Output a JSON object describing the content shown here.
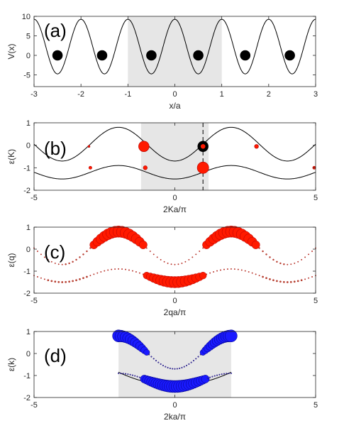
{
  "colors": {
    "shade": "#e6e6e6",
    "curve": "#000000",
    "atom": "#000000",
    "red": "#ff1a00",
    "red_edge": "#b30000",
    "blue": "#1a1aff",
    "blue_edge": "#000080"
  },
  "chart_data": [
    {
      "panel": "(a)",
      "type": "line",
      "xlabel": "x/a",
      "ylabel": "V(x)",
      "xlim": [
        -3,
        3
      ],
      "ylim": [
        -8,
        10
      ],
      "xticks": [
        -3,
        -2,
        -1,
        0,
        1,
        2,
        3
      ],
      "yticks": [
        -5,
        0,
        5,
        10
      ],
      "shaded_x": [
        -1,
        1
      ],
      "curve": {
        "formula": "V(x) = 2.25 + 7*cos(2*pi*x)",
        "x_range": [
          -3,
          3
        ]
      },
      "atoms": {
        "x": [
          -2.5,
          -1.55,
          -0.5,
          0.5,
          1.5,
          2.45
        ],
        "y": [
          0,
          0,
          0,
          0,
          0,
          0
        ]
      }
    },
    {
      "panel": "(b)",
      "type": "scatter",
      "xlabel": "2Ka/π",
      "ylabel": "ε(K)",
      "xlim": [
        -5,
        5
      ],
      "ylim": [
        -2,
        1
      ],
      "xticks": [
        -5,
        0,
        5
      ],
      "yticks": [
        -2,
        -1,
        0,
        1
      ],
      "shaded_x": [
        -1.2,
        1.2
      ],
      "dashed_x": 1,
      "bands": [
        {
          "formula": "0.05 - 0.75*cos(pi*x/2)"
        },
        {
          "formula": "-1.2 - 0.3*cos(pi*x/2)"
        }
      ],
      "points": [
        {
          "x": -1.1,
          "y": -0.05,
          "size": 1.0,
          "color": "red"
        },
        {
          "x": 1.0,
          "y": -0.05,
          "size": 1.0,
          "color": "black-ring"
        },
        {
          "x": 1.0,
          "y": -1.0,
          "size": 1.1,
          "color": "red"
        },
        {
          "x": -1.05,
          "y": -1.0,
          "size": 0.35,
          "color": "red"
        },
        {
          "x": 2.9,
          "y": -0.05,
          "size": 0.35,
          "color": "red"
        },
        {
          "x": -3.0,
          "y": -1.0,
          "size": 0.25,
          "color": "red"
        },
        {
          "x": 4.95,
          "y": -1.0,
          "size": 0.25,
          "color": "red"
        },
        {
          "x": -3.05,
          "y": -0.05,
          "size": 0.15,
          "color": "red"
        }
      ]
    },
    {
      "panel": "(c)",
      "type": "scatter",
      "xlabel": "2qa/π",
      "ylabel": "ε(q)",
      "xlim": [
        -5,
        5
      ],
      "ylim": [
        -2,
        1
      ],
      "xticks": [
        -5,
        0,
        5
      ],
      "yticks": [
        -2,
        -1,
        0,
        1
      ],
      "bands": [
        {
          "formula": "0.05 - 0.75*cos(pi*x/2)"
        },
        {
          "formula": "-1.2 - 0.3*cos(pi*x/2)"
        }
      ],
      "color": "red",
      "weight_model": "upper band large on 1<|x|<3, lower band large on |x|<1; small elsewhere"
    },
    {
      "panel": "(d)",
      "type": "scatter",
      "xlabel": "2ka/π",
      "ylabel": "ε(k)",
      "xlim": [
        -5,
        5
      ],
      "ylim": [
        -2,
        1
      ],
      "xticks": [
        -5,
        0,
        5
      ],
      "yticks": [
        -2,
        -1,
        0,
        1
      ],
      "shaded_x": [
        -2,
        2
      ],
      "curve": {
        "formula": "-1.45 + 0.15*x*x",
        "x_range": [
          -2,
          2
        ]
      },
      "color": "blue",
      "weight_model": "large on upper band for |x|>1 and lower band for |x|<1; small elsewhere"
    }
  ]
}
